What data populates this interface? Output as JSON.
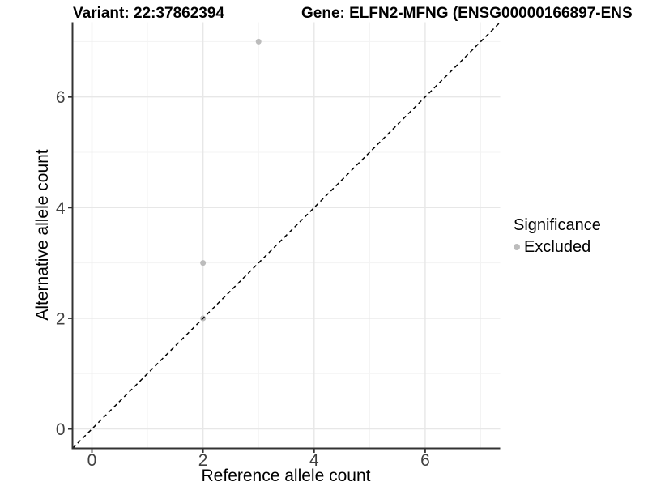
{
  "chart_data": {
    "type": "scatter",
    "title_left": "Variant: 22:37862394",
    "title_right": "Gene: ELFN2-MFNG (ENSG00000166897-ENS",
    "xlabel": "Reference allele count",
    "ylabel": "Alternative allele count",
    "xlim": [
      -0.35,
      7.35
    ],
    "ylim": [
      -0.35,
      7.35
    ],
    "x_major_ticks": [
      0,
      2,
      4,
      6
    ],
    "y_major_ticks": [
      0,
      2,
      4,
      6
    ],
    "x_minor_ticks": [
      1,
      3,
      5,
      7
    ],
    "y_minor_ticks": [
      1,
      3,
      5,
      7
    ],
    "grid": true,
    "legend_position": "right",
    "series": [
      {
        "name": "Excluded",
        "color": "#bcbcbc",
        "points": [
          {
            "x": 2,
            "y": 2
          },
          {
            "x": 2,
            "y": 3
          },
          {
            "x": 3,
            "y": 7
          }
        ]
      }
    ],
    "reference_line": {
      "type": "identity",
      "style": "dashed",
      "color": "#000000",
      "from": -0.35,
      "to": 7.35
    },
    "legend": {
      "title": "Significance",
      "items": [
        {
          "label": "Excluded",
          "color": "#bcbcbc"
        }
      ]
    },
    "colors": {
      "background": "#ffffff",
      "grid_major": "#e7e7e7",
      "grid_minor": "#f3f3f3",
      "axis_line": "#333333",
      "tick_label": "#404040",
      "point": "#bcbcbc",
      "text": "#000000"
    }
  }
}
